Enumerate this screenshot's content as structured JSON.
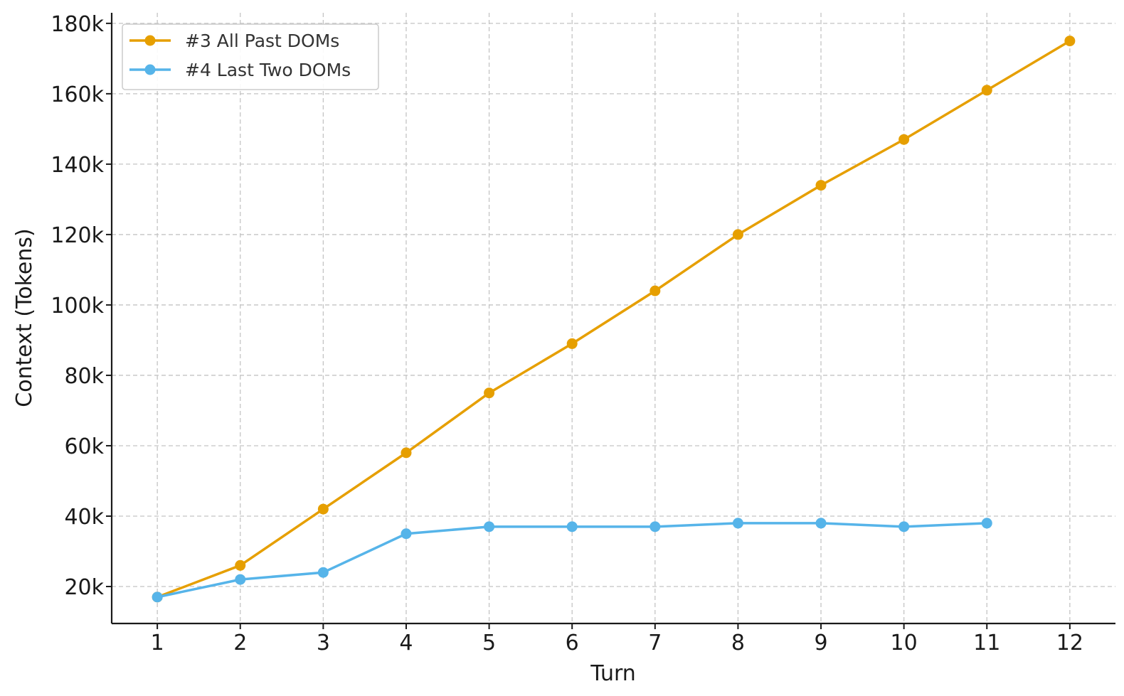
{
  "chart_data": {
    "type": "line",
    "title": "",
    "xlabel": "Turn",
    "ylabel": "Context (Tokens)",
    "x": [
      1,
      2,
      3,
      4,
      5,
      6,
      7,
      8,
      9,
      10,
      11,
      12
    ],
    "x_tick_labels": [
      "1",
      "2",
      "3",
      "4",
      "5",
      "6",
      "7",
      "8",
      "9",
      "10",
      "11",
      "12"
    ],
    "y_ticks": [
      20000,
      40000,
      60000,
      80000,
      100000,
      120000,
      140000,
      160000,
      180000
    ],
    "y_tick_labels": [
      "20k",
      "40k",
      "60k",
      "80k",
      "100k",
      "120k",
      "140k",
      "160k",
      "180k"
    ],
    "xlim": [
      0.45,
      12.55
    ],
    "ylim": [
      9500,
      183000
    ],
    "grid": true,
    "legend_position": "top-left",
    "series": [
      {
        "name": "#3 All Past DOMs",
        "color": "#E69F00",
        "marker": "circle",
        "x": [
          1,
          2,
          3,
          4,
          5,
          6,
          7,
          8,
          9,
          10,
          11,
          12
        ],
        "values": [
          17000,
          26000,
          42000,
          58000,
          75000,
          89000,
          104000,
          120000,
          134000,
          147000,
          161000,
          175000
        ]
      },
      {
        "name": "#4 Last Two DOMs",
        "color": "#56B4E9",
        "marker": "circle",
        "x": [
          1,
          2,
          3,
          4,
          5,
          6,
          7,
          8,
          9,
          10,
          11
        ],
        "values": [
          17000,
          22000,
          24000,
          35000,
          37000,
          37000,
          37000,
          38000,
          38000,
          37000,
          38000
        ]
      }
    ]
  }
}
